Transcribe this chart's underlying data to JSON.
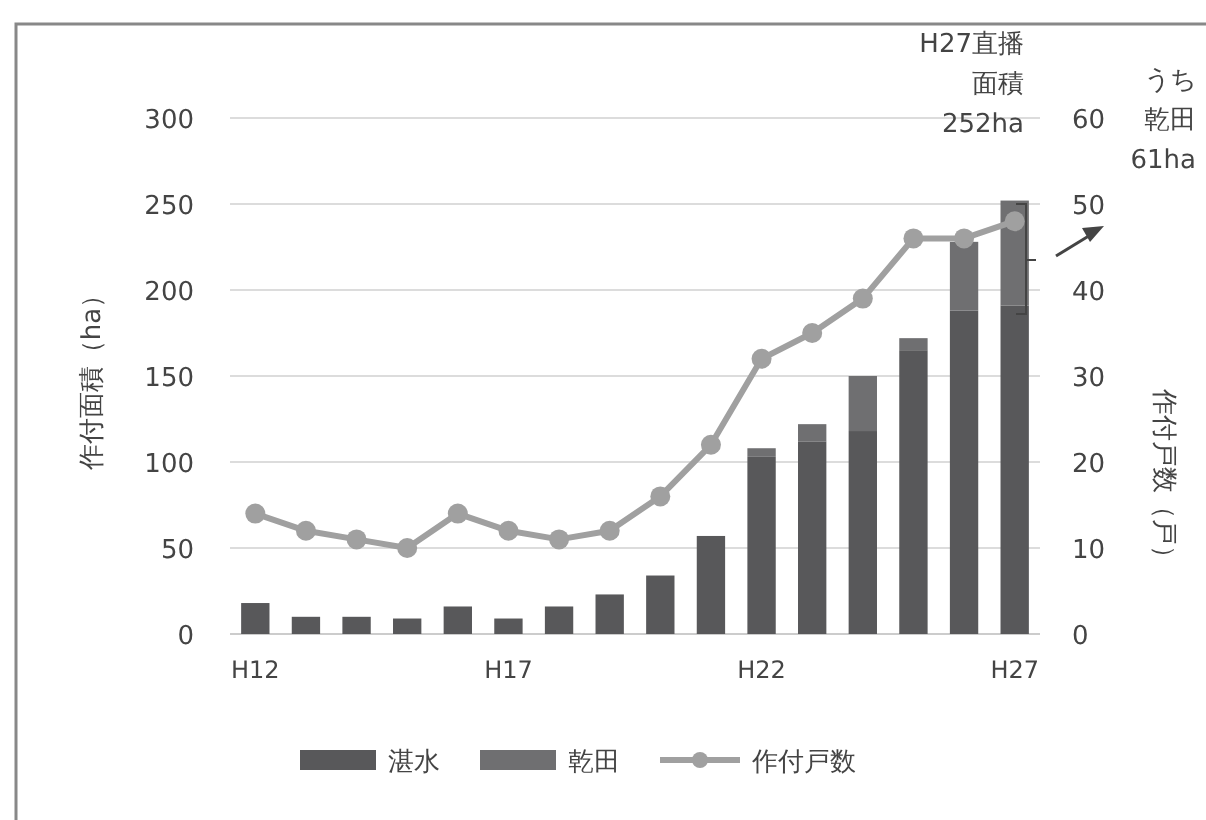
{
  "chart_data": {
    "type": "bar",
    "stacked": true,
    "categories": [
      "H12",
      null,
      null,
      null,
      null,
      "H17",
      null,
      null,
      null,
      null,
      "H22",
      null,
      null,
      null,
      null,
      "H27"
    ],
    "series": [
      {
        "name": "湛水",
        "color": "#58585a",
        "values": [
          18,
          10,
          10,
          9,
          16,
          9,
          16,
          23,
          34,
          57,
          103,
          112,
          118,
          165,
          188,
          191
        ]
      },
      {
        "name": "乾田",
        "color": "#6f6f71",
        "values": [
          0,
          0,
          0,
          0,
          0,
          0,
          0,
          0,
          0,
          0,
          5,
          10,
          32,
          7,
          40,
          61
        ]
      },
      {
        "name": "作付戸数",
        "type": "line",
        "axis": "y2",
        "color": "#a0a0a0",
        "marker": "circle",
        "values": [
          14,
          12,
          11,
          10,
          14,
          12,
          11,
          12,
          16,
          22,
          32,
          35,
          39,
          46,
          46,
          48
        ]
      }
    ],
    "ylabel": "作付面積（ha）",
    "y2label": "作付戸数（戸）",
    "ylim": [
      0,
      300
    ],
    "yticks": [
      0,
      50,
      100,
      150,
      200,
      250,
      300
    ],
    "y2lim": [
      0,
      60
    ],
    "y2ticks": [
      0,
      10,
      20,
      30,
      40,
      50,
      60
    ],
    "grid": "y",
    "legend": "bottom",
    "annotations": [
      "H27直播",
      "面積",
      "252ha",
      "うち",
      "乾田",
      "61ha"
    ]
  }
}
